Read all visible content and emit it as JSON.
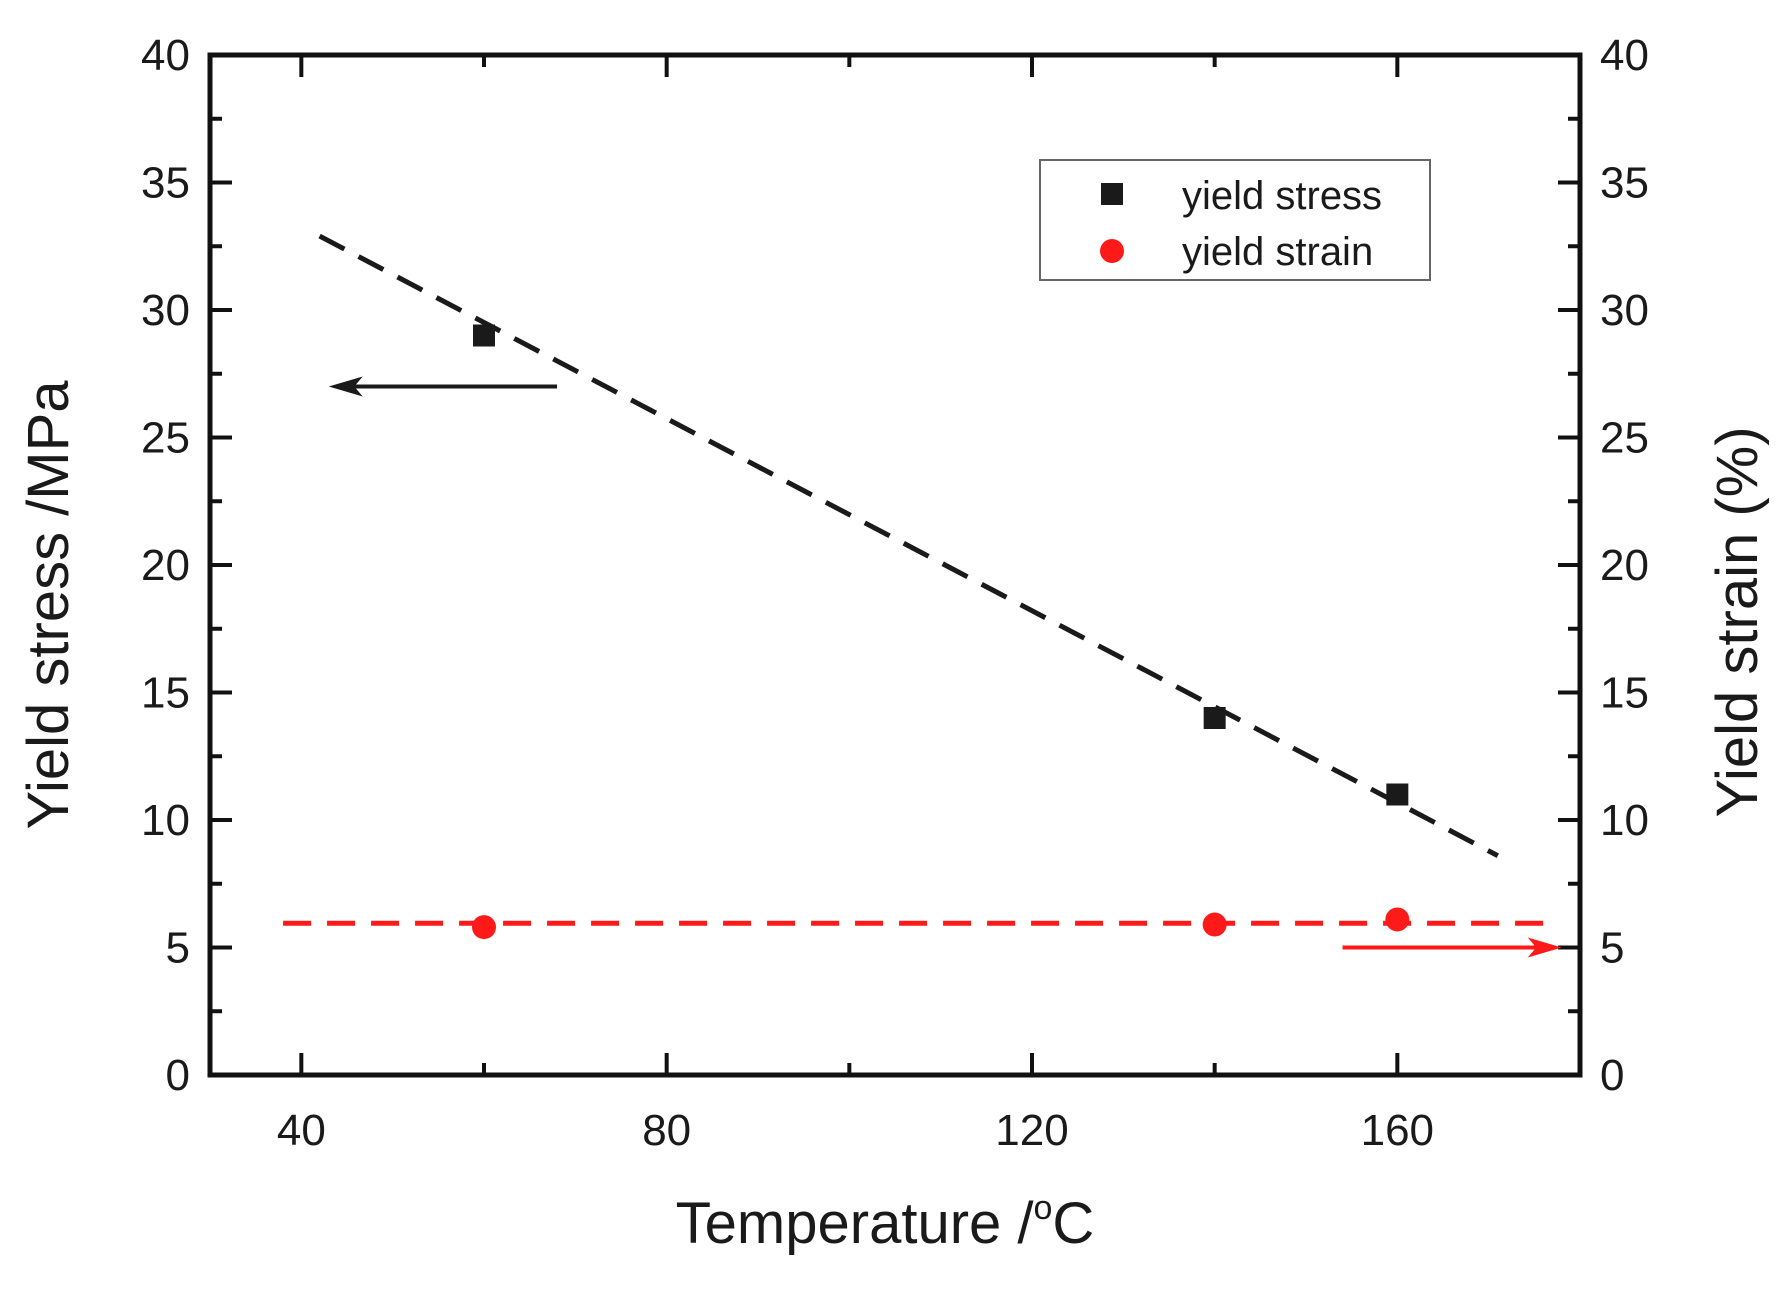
{
  "chart_data": {
    "type": "scatter",
    "title": "",
    "x": [
      60,
      140,
      160
    ],
    "xlabel_prefix": "Temperature /",
    "xlabel_degree": "o",
    "xlabel_unit": "C",
    "ylabel_left": "Yield stress /MPa",
    "ylabel_right": "Yield strain (%)",
    "xlim": [
      30,
      180
    ],
    "ylim_left": [
      0,
      40
    ],
    "ylim_right": [
      0,
      40
    ],
    "x_ticks": [
      40,
      80,
      120,
      160
    ],
    "y_ticks": [
      0,
      5,
      10,
      15,
      20,
      25,
      30,
      35,
      40
    ],
    "series": [
      {
        "name": "yield stress",
        "axis": "left",
        "marker": "square",
        "color": "#1a1a1a",
        "values": [
          29,
          14,
          11
        ]
      },
      {
        "name": "yield strain",
        "axis": "right",
        "marker": "circle",
        "color": "#ff1a1a",
        "values": [
          5.8,
          5.9,
          6.1
        ]
      }
    ],
    "fit_lines": [
      {
        "series": "yield stress",
        "style": "dashed",
        "color": "#1a1a1a",
        "x": [
          42,
          171
        ],
        "y": [
          32.9,
          8.6
        ]
      },
      {
        "series": "yield strain",
        "style": "dashed",
        "color": "#ff1a1a",
        "x": [
          38,
          176
        ],
        "y": [
          5.95,
          5.95
        ]
      }
    ],
    "axis_arrows": [
      {
        "series": "yield stress",
        "direction": "left",
        "color": "#1a1a1a",
        "x_from": 68,
        "x_to": 43,
        "y": 27
      },
      {
        "series": "yield strain",
        "direction": "right",
        "color": "#ff1a1a",
        "x_from": 154,
        "x_to": 178,
        "y": 5
      }
    ],
    "legend_position": "top-right",
    "grid": false
  }
}
